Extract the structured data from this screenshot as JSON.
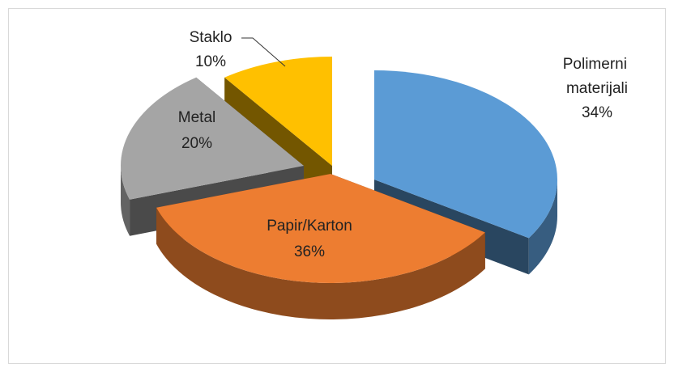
{
  "chart_data": {
    "type": "pie3d",
    "categories": [
      "Polimerni materijali",
      "Papir/Karton",
      "Metal",
      "Staklo"
    ],
    "values": [
      34,
      36,
      20,
      10
    ],
    "value_labels": [
      "34%",
      "36%",
      "20%",
      "10%"
    ],
    "colors": [
      "#5b9bd5",
      "#ed7d31",
      "#a5a5a5",
      "#ffc000"
    ]
  }
}
